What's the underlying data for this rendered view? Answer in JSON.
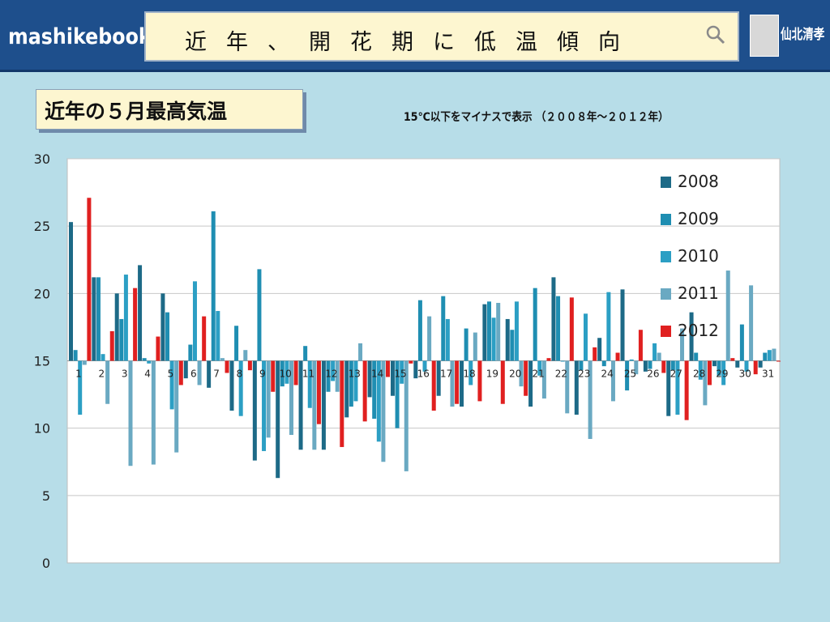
{
  "header": {
    "logo": "mashikebook",
    "title": "近年、開花期に低温傾向",
    "author": "仙北清孝"
  },
  "subtitle": "近年の５月最高気温",
  "note": "15℃以下をマイナスで表示 （２００８年～２０１２年）",
  "colors": {
    "2008": "#1d6a87",
    "2009": "#1f8eb2",
    "2010": "#2c9fc4",
    "2011": "#6aa9c2",
    "2012": "#e02020"
  },
  "chart_data": {
    "type": "bar",
    "baseline": 15,
    "ylim": [
      0,
      30
    ],
    "yticks": [
      0,
      5,
      10,
      15,
      20,
      25,
      30
    ],
    "categories": [
      "1",
      "2",
      "3",
      "4",
      "5",
      "6",
      "7",
      "8",
      "9",
      "10",
      "11",
      "12",
      "13",
      "14",
      "15",
      "16",
      "17",
      "18",
      "19",
      "20",
      "21",
      "22",
      "23",
      "24",
      "25",
      "26",
      "27",
      "28",
      "29",
      "30",
      "31"
    ],
    "series": [
      {
        "name": "2008",
        "values": [
          25.3,
          21.2,
          20.0,
          22.1,
          20.0,
          13.7,
          13.0,
          11.3,
          7.6,
          6.3,
          8.4,
          8.4,
          10.8,
          12.3,
          12.4,
          13.7,
          12.4,
          11.6,
          19.2,
          18.1,
          11.6,
          21.2,
          11.0,
          16.7,
          20.3,
          14.2,
          10.9,
          18.6,
          14.6,
          14.5,
          14.5
        ]
      },
      {
        "name": "2009",
        "values": [
          15.8,
          21.2,
          18.1,
          15.2,
          18.6,
          16.2,
          26.1,
          17.6,
          21.8,
          13.1,
          16.1,
          12.7,
          11.6,
          10.7,
          10.0,
          19.5,
          19.8,
          17.4,
          19.4,
          17.3,
          20.4,
          19.8,
          14.3,
          14.6,
          12.8,
          14.4,
          14.3,
          15.6,
          13.9,
          17.7,
          15.6
        ]
      },
      {
        "name": "2010",
        "values": [
          11.0,
          15.5,
          21.4,
          14.8,
          11.4,
          20.9,
          18.7,
          10.9,
          8.3,
          13.3,
          11.5,
          13.5,
          12.0,
          9.0,
          13.3,
          14.2,
          18.1,
          13.2,
          18.2,
          19.4,
          13.9,
          15.0,
          18.5,
          20.1,
          15.1,
          16.3,
          11.0,
          13.6,
          13.2,
          14.2,
          15.8
        ]
      },
      {
        "name": "2011",
        "values": [
          14.7,
          11.8,
          7.2,
          7.3,
          8.2,
          13.2,
          15.2,
          15.8,
          9.3,
          9.5,
          8.4,
          12.7,
          16.3,
          7.5,
          6.8,
          18.3,
          11.6,
          17.1,
          19.3,
          13.1,
          12.2,
          11.1,
          9.2,
          12.0,
          14.0,
          15.6,
          17.4,
          11.7,
          21.7,
          20.6,
          15.9
        ]
      },
      {
        "name": "2012",
        "values": [
          27.1,
          17.2,
          20.4,
          16.8,
          13.2,
          18.3,
          14.1,
          14.3,
          12.7,
          13.2,
          10.3,
          8.6,
          10.5,
          13.8,
          14.8,
          11.3,
          11.8,
          12.0,
          11.8,
          12.4,
          15.2,
          19.7,
          16.0,
          15.6,
          17.3,
          14.1,
          10.6,
          13.2,
          15.2,
          14.0,
          15.0
        ]
      }
    ]
  }
}
